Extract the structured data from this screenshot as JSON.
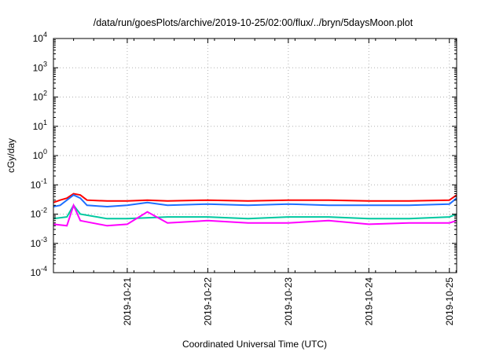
{
  "chart_data": {
    "type": "line",
    "title": "/data/run/goesPlots/archive/2019-10-25/02:00/flux/../bryn/5daysMoon.plot",
    "xlabel": "Coordinated Universal Time (UTC)",
    "ylabel": "cGy/day",
    "yscale": "log",
    "ylim": [
      0.0001,
      10000
    ],
    "xlim": [
      "2019-10-20 02:00",
      "2019-10-25 02:10"
    ],
    "grid": true,
    "legend": "none",
    "y_ticks": [
      {
        "base": "10",
        "exp": "-4"
      },
      {
        "base": "10",
        "exp": "-3"
      },
      {
        "base": "10",
        "exp": "-2"
      },
      {
        "base": "10",
        "exp": "-1"
      },
      {
        "base": "10",
        "exp": "0"
      },
      {
        "base": "10",
        "exp": "1"
      },
      {
        "base": "10",
        "exp": "2"
      },
      {
        "base": "10",
        "exp": "3"
      },
      {
        "base": "10",
        "exp": "4"
      }
    ],
    "x_ticks": [
      "2019-10-21",
      "2019-10-22",
      "2019-10-23",
      "2019-10-24",
      "2019-10-25"
    ],
    "series": [
      {
        "color": "#ff0000",
        "points": [
          [
            "2019-10-20 02:00",
            0.025
          ],
          [
            "2019-10-20 04:00",
            0.03
          ],
          [
            "2019-10-20 06:00",
            0.035
          ],
          [
            "2019-10-20 08:00",
            0.05
          ],
          [
            "2019-10-20 10:00",
            0.045
          ],
          [
            "2019-10-20 12:00",
            0.03
          ],
          [
            "2019-10-20 18:00",
            0.028
          ],
          [
            "2019-10-21 00:00",
            0.028
          ],
          [
            "2019-10-21 06:00",
            0.03
          ],
          [
            "2019-10-21 12:00",
            0.028
          ],
          [
            "2019-10-22 00:00",
            0.03
          ],
          [
            "2019-10-22 12:00",
            0.028
          ],
          [
            "2019-10-23 00:00",
            0.03
          ],
          [
            "2019-10-23 12:00",
            0.03
          ],
          [
            "2019-10-24 00:00",
            0.028
          ],
          [
            "2019-10-24 12:00",
            0.028
          ],
          [
            "2019-10-25 00:00",
            0.03
          ],
          [
            "2019-10-25 02:10",
            0.045
          ]
        ]
      },
      {
        "color": "#1f6fff",
        "points": [
          [
            "2019-10-20 02:00",
            0.018
          ],
          [
            "2019-10-20 04:00",
            0.02
          ],
          [
            "2019-10-20 06:00",
            0.03
          ],
          [
            "2019-10-20 08:00",
            0.045
          ],
          [
            "2019-10-20 10:00",
            0.035
          ],
          [
            "2019-10-20 12:00",
            0.02
          ],
          [
            "2019-10-20 18:00",
            0.018
          ],
          [
            "2019-10-21 00:00",
            0.02
          ],
          [
            "2019-10-21 06:00",
            0.025
          ],
          [
            "2019-10-21 12:00",
            0.02
          ],
          [
            "2019-10-22 00:00",
            0.022
          ],
          [
            "2019-10-22 12:00",
            0.02
          ],
          [
            "2019-10-23 00:00",
            0.022
          ],
          [
            "2019-10-23 12:00",
            0.02
          ],
          [
            "2019-10-24 00:00",
            0.02
          ],
          [
            "2019-10-24 12:00",
            0.02
          ],
          [
            "2019-10-25 00:00",
            0.022
          ],
          [
            "2019-10-25 02:10",
            0.035
          ]
        ]
      },
      {
        "color": "#00c8a0",
        "points": [
          [
            "2019-10-20 02:00",
            0.007
          ],
          [
            "2019-10-20 06:00",
            0.008
          ],
          [
            "2019-10-20 08:00",
            0.02
          ],
          [
            "2019-10-20 10:00",
            0.01
          ],
          [
            "2019-10-20 18:00",
            0.007
          ],
          [
            "2019-10-21 00:00",
            0.007
          ],
          [
            "2019-10-21 12:00",
            0.008
          ],
          [
            "2019-10-22 00:00",
            0.008
          ],
          [
            "2019-10-22 12:00",
            0.007
          ],
          [
            "2019-10-23 00:00",
            0.008
          ],
          [
            "2019-10-23 12:00",
            0.008
          ],
          [
            "2019-10-24 00:00",
            0.007
          ],
          [
            "2019-10-24 12:00",
            0.007
          ],
          [
            "2019-10-25 00:00",
            0.008
          ],
          [
            "2019-10-25 02:10",
            0.01
          ]
        ]
      },
      {
        "color": "#ff00ff",
        "points": [
          [
            "2019-10-20 02:00",
            0.0045
          ],
          [
            "2019-10-20 06:00",
            0.004
          ],
          [
            "2019-10-20 08:00",
            0.02
          ],
          [
            "2019-10-20 10:00",
            0.006
          ],
          [
            "2019-10-20 18:00",
            0.004
          ],
          [
            "2019-10-21 00:00",
            0.0045
          ],
          [
            "2019-10-21 06:00",
            0.012
          ],
          [
            "2019-10-21 12:00",
            0.005
          ],
          [
            "2019-10-22 00:00",
            0.006
          ],
          [
            "2019-10-22 12:00",
            0.005
          ],
          [
            "2019-10-23 00:00",
            0.005
          ],
          [
            "2019-10-23 12:00",
            0.006
          ],
          [
            "2019-10-24 00:00",
            0.0045
          ],
          [
            "2019-10-24 12:00",
            0.005
          ],
          [
            "2019-10-25 00:00",
            0.005
          ],
          [
            "2019-10-25 02:10",
            0.006
          ]
        ]
      }
    ]
  }
}
